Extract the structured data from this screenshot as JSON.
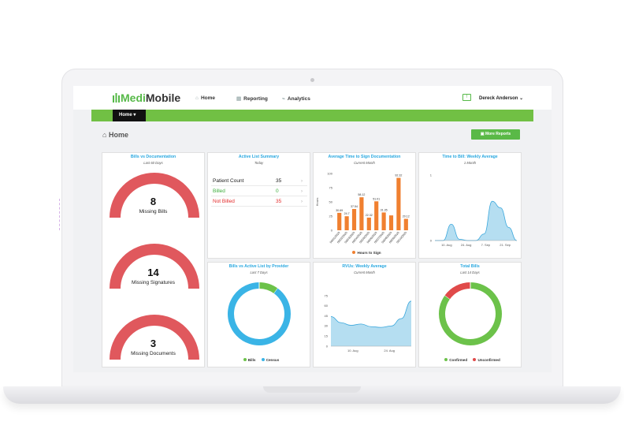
{
  "app": {
    "brand_prefix": "Medi",
    "brand_suffix": "Mobile"
  },
  "nav": {
    "home": "Home",
    "reporting": "Reporting",
    "analytics": "Analytics"
  },
  "user": {
    "name": "Dereck Anderson",
    "chevron": "⌄"
  },
  "subnav": {
    "home_button": "Home"
  },
  "page": {
    "title": "Home",
    "more_reports": "More Reports"
  },
  "bills_vs_doc": {
    "title": "Bills vs Documentation",
    "subtitle": "Last 60 Days",
    "gauges": [
      {
        "value": "8",
        "label": "Missing Bills"
      },
      {
        "value": "14",
        "label": "Missing Signatures"
      },
      {
        "value": "3",
        "label": "Missing Documents"
      }
    ]
  },
  "active_list": {
    "title": "Active List Summary",
    "subtitle": "Today",
    "rows": [
      {
        "label": "Patient Count",
        "value": "35",
        "color": "#222222"
      },
      {
        "label": "Billed",
        "value": "0",
        "color": "#3cae3c"
      },
      {
        "label": "Not Billed",
        "value": "35",
        "color": "#e32b2b"
      }
    ]
  },
  "avg_time": {
    "title": "Average Time to Sign Documentation",
    "subtitle": "Current Month",
    "ylabel": "Hours",
    "legend": "Hours to Sign",
    "color": "#f08030"
  },
  "time_to_bill": {
    "title": "Time to Bill: Weekly Average",
    "subtitle": "1 Month",
    "color": "#a8d8ef"
  },
  "bills_vs_active": {
    "title": "Bills vs Active List by Provider",
    "subtitle": "Last 7 Days",
    "legend": [
      "Bills",
      "Census"
    ],
    "colors": {
      "bills": "#6cc24a",
      "census": "#3ab4e6"
    },
    "values": [
      0.1,
      0.9
    ]
  },
  "rvus": {
    "title": "RVUs: Weekly Average",
    "subtitle": "Current Month",
    "color": "#a8d8ef"
  },
  "total_bills": {
    "title": "Total Bills",
    "subtitle": "Last 14 Days",
    "legend": [
      "Confirmed",
      "Unconfirmed"
    ],
    "colors": {
      "confirmed": "#6cc24a",
      "unconfirmed": "#e04a4a"
    },
    "values": [
      0.85,
      0.15
    ]
  },
  "chart_data": [
    {
      "type": "bar",
      "title": "Average Time to Sign Documentation",
      "ylabel": "Hours",
      "ylim": [
        0,
        100
      ],
      "yticks": [
        "100",
        "75",
        "50",
        "25",
        "0"
      ],
      "categories": [
        "09/01/2020",
        "09/02/2020",
        "09/03/2020",
        "09/04/2020",
        "09/05/2020",
        "09/06/2020",
        "09/07/2020",
        "09/08/2020",
        "09/09/2020",
        "09/10/2020"
      ],
      "series": [
        {
          "name": "Hours to Sign",
          "values": [
            30.69,
            24.7,
            37.54,
            58.12,
            22.32,
            51.01,
            31.35,
            26.2,
            92.32,
            20.12
          ]
        }
      ],
      "data_labels": [
        "30.69",
        "24.7",
        "37.54",
        "58.12",
        "22.32",
        "51.01",
        "31.35",
        "",
        "92.32",
        "20.12"
      ]
    },
    {
      "type": "area",
      "title": "Time to Bill: Weekly Average",
      "ylim": [
        0,
        1
      ],
      "yticks": [
        "1",
        "0"
      ],
      "xticks": [
        "10. Aug",
        "24. Aug",
        "7. Sep",
        "21. Sep"
      ],
      "series": [
        {
          "values": [
            0,
            0,
            0.25,
            0.02,
            0,
            0,
            0.1,
            0.6,
            0.5,
            0.2,
            0
          ]
        }
      ]
    },
    {
      "type": "area",
      "title": "RVUs: Weekly Average",
      "ylim": [
        0,
        75
      ],
      "yticks": [
        "75",
        "60",
        "45",
        "30",
        "15",
        "0"
      ],
      "xticks": [
        "10. Aug",
        "24. Aug"
      ],
      "series": [
        {
          "values": [
            44,
            35,
            31,
            33,
            29,
            28,
            30,
            41,
            67
          ]
        }
      ]
    },
    {
      "type": "pie",
      "title": "Bills vs Active List by Provider",
      "labels": [
        "Bills",
        "Census"
      ],
      "values": [
        0.1,
        0.9
      ]
    },
    {
      "type": "pie",
      "title": "Total Bills",
      "labels": [
        "Confirmed",
        "Unconfirmed"
      ],
      "values": [
        0.85,
        0.15
      ]
    }
  ]
}
